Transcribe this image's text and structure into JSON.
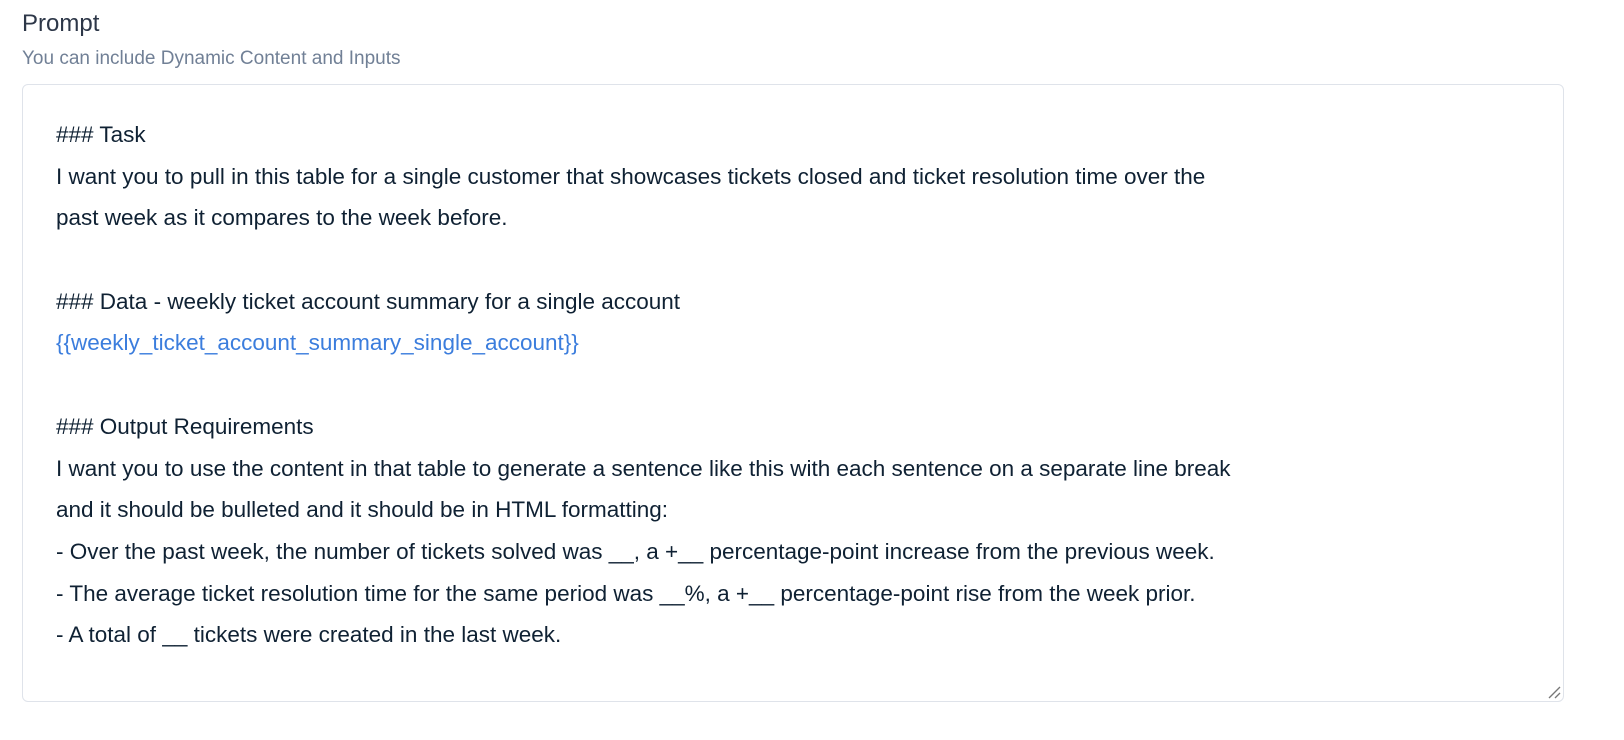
{
  "field": {
    "label": "Prompt",
    "hint": "You can include Dynamic Content and Inputs"
  },
  "colors": {
    "text": "#0f2133",
    "variable": "#3b7ddd",
    "border": "#dfe3ea"
  },
  "prompt_lines": [
    {
      "text": "### Task",
      "type": "text"
    },
    {
      "text": "I want you to pull in this table for a single customer that showcases tickets closed and ticket resolution time over the",
      "type": "text"
    },
    {
      "text": "past week as it compares to the week before.",
      "type": "text"
    },
    {
      "text": "",
      "type": "blank"
    },
    {
      "text": "### Data - weekly ticket account summary for a single account",
      "type": "text"
    },
    {
      "text": "{{weekly_ticket_account_summary_single_account}}",
      "type": "variable"
    },
    {
      "text": "",
      "type": "blank"
    },
    {
      "text": "### Output Requirements",
      "type": "text"
    },
    {
      "text": "I want you to use the content in that table to generate a sentence like this with each sentence on a separate line break",
      "type": "text"
    },
    {
      "text": "and it should be bulleted and it should be in HTML formatting:",
      "type": "text"
    },
    {
      "text": "- Over the past week, the number of tickets solved was __, a +__ percentage-point increase from the previous week.",
      "type": "text"
    },
    {
      "text": "- The average ticket resolution time for the same period was __%, a +__ percentage-point rise from the week prior.",
      "type": "text"
    },
    {
      "text": "- A total of __ tickets were created in the last week.",
      "type": "text"
    }
  ]
}
